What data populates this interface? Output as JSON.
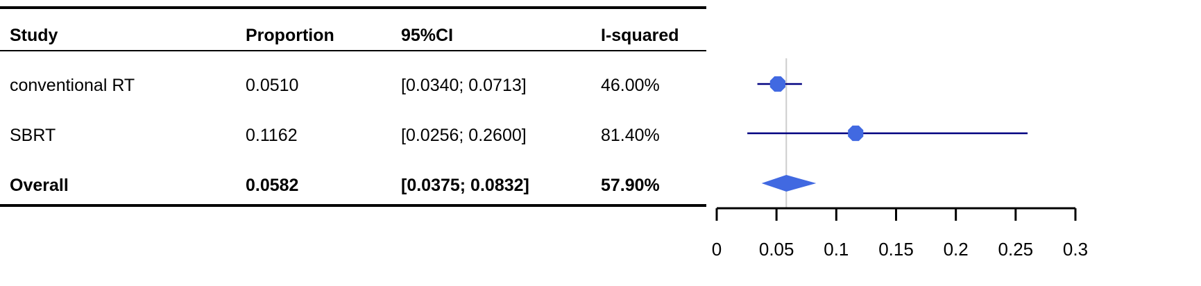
{
  "table": {
    "headers": [
      "Study",
      "Proportion",
      "95%CI",
      "I-squared"
    ],
    "rows": [
      {
        "study": "conventional RT",
        "proportion": "0.0510",
        "ci": "[0.0340; 0.0713]",
        "i2": "46.00%"
      },
      {
        "study": "SBRT",
        "proportion": "0.1162",
        "ci": "[0.0256; 0.2600]",
        "i2": "81.40%"
      },
      {
        "study": "Overall",
        "proportion": "0.0582",
        "ci": "[0.0375; 0.0832]",
        "i2": "57.90%"
      }
    ]
  },
  "chart_data": {
    "type": "forest",
    "title": "",
    "xlabel": "",
    "xlim": [
      0,
      0.3
    ],
    "xticks": [
      0,
      0.05,
      0.1,
      0.15,
      0.2,
      0.25,
      0.3
    ],
    "xtick_labels": [
      "0",
      "0.05",
      "0.1",
      "0.15",
      "0.2",
      "0.25",
      "0.3"
    ],
    "reference_line": 0.0582,
    "studies": [
      {
        "label": "conventional RT",
        "estimate": 0.051,
        "lower": 0.034,
        "upper": 0.0713
      },
      {
        "label": "SBRT",
        "estimate": 0.1162,
        "lower": 0.0256,
        "upper": 0.26
      }
    ],
    "overall": {
      "label": "Overall",
      "estimate": 0.0582,
      "lower": 0.0375,
      "upper": 0.0832
    },
    "colors": {
      "point": "#4169e1",
      "ci_line": "#000080",
      "diamond": "#4169e1",
      "ref_line": "#cccccc",
      "axis": "#000000"
    }
  }
}
